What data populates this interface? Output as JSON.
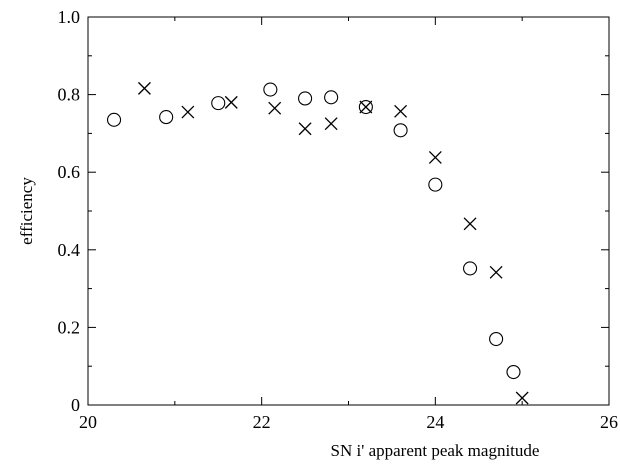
{
  "chart_data": {
    "type": "scatter",
    "xlabel": "SN i' apparent peak magnitude",
    "ylabel": "efficiency",
    "xlim": [
      20,
      26
    ],
    "ylim": [
      0,
      1.0
    ],
    "x_ticks": [
      20,
      22,
      24,
      26
    ],
    "x_tick_labels": [
      "20",
      "22",
      "24",
      "26"
    ],
    "y_ticks": [
      0,
      0.2,
      0.4,
      0.6,
      0.8,
      1.0
    ],
    "y_tick_labels": [
      "0",
      "0.2",
      "0.4",
      "0.6",
      "0.8",
      "1.0"
    ],
    "grid": false,
    "legend": "none",
    "series": [
      {
        "marker": "circle",
        "points": [
          {
            "x": 20.3,
            "y": 0.735
          },
          {
            "x": 20.9,
            "y": 0.742
          },
          {
            "x": 21.5,
            "y": 0.778
          },
          {
            "x": 22.1,
            "y": 0.813
          },
          {
            "x": 22.5,
            "y": 0.79
          },
          {
            "x": 22.8,
            "y": 0.793
          },
          {
            "x": 23.2,
            "y": 0.768
          },
          {
            "x": 23.6,
            "y": 0.708
          },
          {
            "x": 24.0,
            "y": 0.568
          },
          {
            "x": 24.4,
            "y": 0.352
          },
          {
            "x": 24.7,
            "y": 0.17
          },
          {
            "x": 24.9,
            "y": 0.085
          }
        ]
      },
      {
        "marker": "cross",
        "points": [
          {
            "x": 20.65,
            "y": 0.816
          },
          {
            "x": 21.15,
            "y": 0.755
          },
          {
            "x": 21.65,
            "y": 0.78
          },
          {
            "x": 22.15,
            "y": 0.765
          },
          {
            "x": 22.5,
            "y": 0.712
          },
          {
            "x": 22.8,
            "y": 0.725
          },
          {
            "x": 23.2,
            "y": 0.768
          },
          {
            "x": 23.6,
            "y": 0.757
          },
          {
            "x": 24.0,
            "y": 0.638
          },
          {
            "x": 24.4,
            "y": 0.467
          },
          {
            "x": 24.7,
            "y": 0.342
          },
          {
            "x": 25.0,
            "y": 0.018
          }
        ]
      }
    ]
  }
}
